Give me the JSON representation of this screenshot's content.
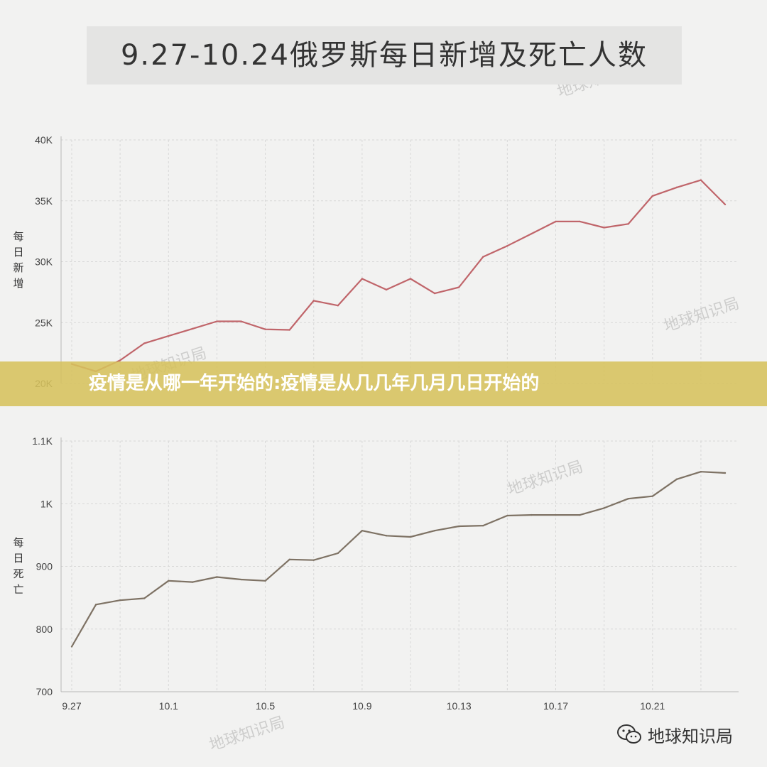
{
  "title": "9.27-10.24俄罗斯每日新增及死亡人数",
  "banner_text": "疫情是从哪一年开始的:疫情是从几几年几月几日开始的",
  "brand": {
    "icon": "wechat-icon",
    "text": "地球知识局"
  },
  "watermark_text": "地球知识局",
  "colors": {
    "new_cases": "#c0656a",
    "deaths": "#7e7264",
    "banner": "#d6c25c",
    "grid": "#d8d8d8"
  },
  "chart_data": [
    {
      "type": "line",
      "ylabel": "每日新增",
      "ylim": [
        20000,
        40000
      ],
      "y_ticks": [
        20000,
        25000,
        30000,
        35000,
        40000
      ],
      "y_tick_labels": [
        "20K",
        "25K",
        "30K",
        "35K",
        "40K"
      ],
      "grid": true,
      "series": [
        {
          "values": [
            21600,
            21000,
            21900,
            23300,
            23900,
            24500,
            25100,
            25100,
            24450,
            24400,
            26800,
            26400,
            28600,
            27700,
            28600,
            27400,
            27900,
            30400,
            31300,
            32300,
            33300,
            33300,
            32800,
            33100,
            35400,
            36100,
            36700,
            34700
          ]
        }
      ]
    },
    {
      "type": "line",
      "ylabel": "每日死亡",
      "ylim": [
        700,
        1100
      ],
      "y_ticks": [
        700,
        800,
        900,
        1000,
        1100
      ],
      "y_tick_labels": [
        "700",
        "800",
        "900",
        "1K",
        "1.1K"
      ],
      "x_tick_labels": [
        "9.27",
        "10.1",
        "10.5",
        "10.9",
        "10.13",
        "10.17",
        "10.21"
      ],
      "grid": true,
      "series": [
        {
          "values": [
            772,
            839,
            846,
            849,
            877,
            875,
            883,
            879,
            877,
            911,
            910,
            921,
            957,
            949,
            947,
            957,
            964,
            965,
            981,
            982,
            982,
            982,
            993,
            1008,
            1012,
            1039,
            1051,
            1049
          ]
        }
      ]
    }
  ]
}
